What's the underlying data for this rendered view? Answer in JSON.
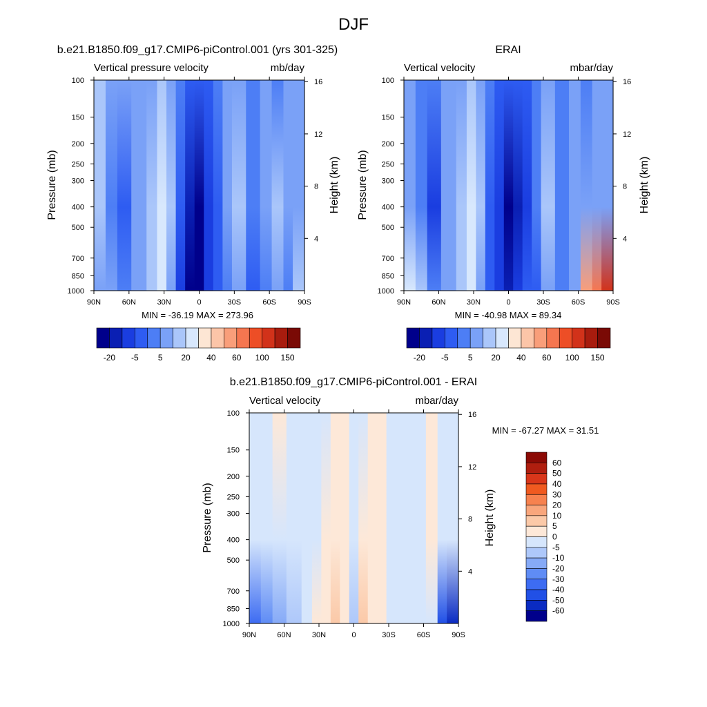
{
  "figure": {
    "title": "DJF",
    "background": "#ffffff"
  },
  "colormaps": {
    "diverging_top": [
      "#00008b",
      "#0a1fb3",
      "#1a3de0",
      "#2e5cf2",
      "#4d7ef5",
      "#7aa1f7",
      "#aac6fa",
      "#d8e8fd",
      "#fde6d4",
      "#fcc5a8",
      "#f99e7a",
      "#f57650",
      "#ed4e26",
      "#d2321a",
      "#a81c0e",
      "#7a0a05"
    ],
    "diff": [
      "#00008b",
      "#0a2bc2",
      "#2150e6",
      "#3d6cf2",
      "#5f8cf5",
      "#86aaf7",
      "#aec8fa",
      "#d6e6fc",
      "#fde8d8",
      "#fbc9a8",
      "#f9a67c",
      "#f7824f",
      "#f05a20",
      "#d9361a",
      "#b01e0f",
      "#8b0a05"
    ]
  },
  "chart_data": [
    {
      "type": "heatmap",
      "panel_id": "model",
      "title": "b.e21.B1850.f09_g17.CMIP6-piControl.001 (yrs 301-325)",
      "left_label": "Vertical pressure velocity",
      "right_label": "mb/day",
      "xlabel": "",
      "ylabel": "Pressure (mb)",
      "y2label": "Height (km)",
      "xticks": [
        "90N",
        "60N",
        "30N",
        "0",
        "30S",
        "60S",
        "90S"
      ],
      "xrange": [
        90,
        -90
      ],
      "yticks": [
        100,
        150,
        200,
        250,
        300,
        400,
        500,
        700,
        850,
        1000
      ],
      "ylim": [
        100,
        1000
      ],
      "y2ticks": [
        4,
        8,
        12,
        16
      ],
      "min": -36.19,
      "max": 273.96,
      "stats_text": "MIN = -36.19  MAX = 273.96",
      "colorbar_labels": [
        "-20",
        "-5",
        "5",
        "20",
        "40",
        "60",
        "100",
        "150"
      ],
      "columns": [
        {
          "lat_from": 90,
          "lat_to": 80,
          "top": 6,
          "mid": 6,
          "bottom": 5
        },
        {
          "lat_from": 80,
          "lat_to": 70,
          "top": 5,
          "mid": 4,
          "bottom": 5
        },
        {
          "lat_from": 70,
          "lat_to": 58,
          "top": 5,
          "mid": 3,
          "bottom": 4
        },
        {
          "lat_from": 58,
          "lat_to": 45,
          "top": 5,
          "mid": 5,
          "bottom": 5
        },
        {
          "lat_from": 45,
          "lat_to": 36,
          "top": 5,
          "mid": 6,
          "bottom": 6
        },
        {
          "lat_from": 36,
          "lat_to": 28,
          "top": 6,
          "mid": 7,
          "bottom": 7
        },
        {
          "lat_from": 28,
          "lat_to": 20,
          "top": 5,
          "mid": 6,
          "bottom": 5
        },
        {
          "lat_from": 20,
          "lat_to": 12,
          "top": 4,
          "mid": 3,
          "bottom": 2
        },
        {
          "lat_from": 12,
          "lat_to": 4,
          "top": 3,
          "mid": 1,
          "bottom": 0
        },
        {
          "lat_from": 4,
          "lat_to": -4,
          "top": 3,
          "mid": 0,
          "bottom": 0
        },
        {
          "lat_from": -4,
          "lat_to": -12,
          "top": 3,
          "mid": 2,
          "bottom": 2
        },
        {
          "lat_from": -12,
          "lat_to": -20,
          "top": 4,
          "mid": 3,
          "bottom": 3
        },
        {
          "lat_from": -20,
          "lat_to": -28,
          "top": 5,
          "mid": 5,
          "bottom": 4
        },
        {
          "lat_from": -28,
          "lat_to": -40,
          "top": 5,
          "mid": 6,
          "bottom": 5
        },
        {
          "lat_from": -40,
          "lat_to": -52,
          "top": 4,
          "mid": 4,
          "bottom": 3
        },
        {
          "lat_from": -52,
          "lat_to": -62,
          "top": 5,
          "mid": 5,
          "bottom": 4
        },
        {
          "lat_from": -62,
          "lat_to": -72,
          "top": 4,
          "mid": 6,
          "bottom": 5
        },
        {
          "lat_from": -72,
          "lat_to": -80,
          "top": 5,
          "mid": 5,
          "bottom": 4
        },
        {
          "lat_from": -80,
          "lat_to": -90,
          "top": 5,
          "mid": 5,
          "bottom": 6
        }
      ]
    },
    {
      "type": "heatmap",
      "panel_id": "obs",
      "title": "ERAI",
      "left_label": "Vertical velocity",
      "right_label": "mbar/day",
      "xlabel": "",
      "ylabel": "Pressure (mb)",
      "y2label": "Height (km)",
      "xticks": [
        "90N",
        "60N",
        "30N",
        "0",
        "30S",
        "60S",
        "90S"
      ],
      "xrange": [
        90,
        -90
      ],
      "yticks": [
        100,
        150,
        200,
        250,
        300,
        400,
        500,
        700,
        850,
        1000
      ],
      "ylim": [
        100,
        1000
      ],
      "y2ticks": [
        4,
        8,
        12,
        16
      ],
      "min": -40.98,
      "max": 89.34,
      "stats_text": "MIN = -40.98  MAX =  89.34",
      "colorbar_labels": [
        "-20",
        "-5",
        "5",
        "20",
        "40",
        "60",
        "100",
        "150"
      ],
      "columns": [
        {
          "lat_from": 90,
          "lat_to": 80,
          "top": 5,
          "mid": 5,
          "bottom": 7
        },
        {
          "lat_from": 80,
          "lat_to": 70,
          "top": 4,
          "mid": 4,
          "bottom": 6
        },
        {
          "lat_from": 70,
          "lat_to": 58,
          "top": 4,
          "mid": 2,
          "bottom": 4
        },
        {
          "lat_from": 58,
          "lat_to": 45,
          "top": 5,
          "mid": 5,
          "bottom": 5
        },
        {
          "lat_from": 45,
          "lat_to": 36,
          "top": 5,
          "mid": 6,
          "bottom": 6
        },
        {
          "lat_from": 36,
          "lat_to": 28,
          "top": 6,
          "mid": 7,
          "bottom": 7
        },
        {
          "lat_from": 28,
          "lat_to": 20,
          "top": 5,
          "mid": 6,
          "bottom": 5
        },
        {
          "lat_from": 20,
          "lat_to": 12,
          "top": 4,
          "mid": 3,
          "bottom": 3
        },
        {
          "lat_from": 12,
          "lat_to": 4,
          "top": 3,
          "mid": 2,
          "bottom": 2
        },
        {
          "lat_from": 4,
          "lat_to": -4,
          "top": 3,
          "mid": 0,
          "bottom": 1
        },
        {
          "lat_from": -4,
          "lat_to": -12,
          "top": 3,
          "mid": 1,
          "bottom": 2
        },
        {
          "lat_from": -12,
          "lat_to": -20,
          "top": 3,
          "mid": 2,
          "bottom": 3
        },
        {
          "lat_from": -20,
          "lat_to": -28,
          "top": 4,
          "mid": 4,
          "bottom": 3
        },
        {
          "lat_from": -28,
          "lat_to": -40,
          "top": 5,
          "mid": 6,
          "bottom": 5
        },
        {
          "lat_from": -40,
          "lat_to": -52,
          "top": 4,
          "mid": 4,
          "bottom": 4
        },
        {
          "lat_from": -52,
          "lat_to": -62,
          "top": 5,
          "mid": 5,
          "bottom": 5
        },
        {
          "lat_from": -62,
          "lat_to": -72,
          "top": 4,
          "mid": 5,
          "bottom": 10
        },
        {
          "lat_from": -72,
          "lat_to": -80,
          "top": 5,
          "mid": 5,
          "bottom": 11
        },
        {
          "lat_from": -80,
          "lat_to": -90,
          "top": 5,
          "mid": 5,
          "bottom": 13
        }
      ]
    },
    {
      "type": "heatmap",
      "panel_id": "diff",
      "title": "b.e21.B1850.f09_g17.CMIP6-piControl.001 - ERAI",
      "left_label": "Vertical velocity",
      "right_label": "mbar/day",
      "xlabel": "",
      "ylabel": "Pressure (mb)",
      "y2label": "Height (km)",
      "xticks": [
        "90N",
        "60N",
        "30N",
        "0",
        "30S",
        "60S",
        "90S"
      ],
      "xrange": [
        90,
        -90
      ],
      "yticks": [
        100,
        150,
        200,
        250,
        300,
        400,
        500,
        700,
        850,
        1000
      ],
      "ylim": [
        100,
        1000
      ],
      "y2ticks": [
        4,
        8,
        12,
        16
      ],
      "min": -67.27,
      "max": 31.51,
      "stats_text": "MIN = -67.27  MAX =  31.51",
      "colorbar_labels": [
        "60",
        "50",
        "40",
        "30",
        "20",
        "10",
        "5",
        "0",
        "-5",
        "-10",
        "-20",
        "-30",
        "-40",
        "-50",
        "-60"
      ],
      "columns": [
        {
          "lat_from": 90,
          "lat_to": 80,
          "top": 7,
          "mid": 7,
          "bottom": 3
        },
        {
          "lat_from": 80,
          "lat_to": 70,
          "top": 7,
          "mid": 7,
          "bottom": 4
        },
        {
          "lat_from": 70,
          "lat_to": 58,
          "top": 8,
          "mid": 7,
          "bottom": 5
        },
        {
          "lat_from": 58,
          "lat_to": 45,
          "top": 7,
          "mid": 7,
          "bottom": 6
        },
        {
          "lat_from": 45,
          "lat_to": 36,
          "top": 7,
          "mid": 7,
          "bottom": 7
        },
        {
          "lat_from": 36,
          "lat_to": 28,
          "top": 7,
          "mid": 7,
          "bottom": 8
        },
        {
          "lat_from": 28,
          "lat_to": 20,
          "top": 7,
          "mid": 8,
          "bottom": 8
        },
        {
          "lat_from": 20,
          "lat_to": 12,
          "top": 8,
          "mid": 8,
          "bottom": 9
        },
        {
          "lat_from": 12,
          "lat_to": 4,
          "top": 8,
          "mid": 8,
          "bottom": 8
        },
        {
          "lat_from": 4,
          "lat_to": -4,
          "top": 7,
          "mid": 7,
          "bottom": 6
        },
        {
          "lat_from": -4,
          "lat_to": -12,
          "top": 7,
          "mid": 8,
          "bottom": 9
        },
        {
          "lat_from": -12,
          "lat_to": -20,
          "top": 8,
          "mid": 8,
          "bottom": 8
        },
        {
          "lat_from": -20,
          "lat_to": -28,
          "top": 8,
          "mid": 8,
          "bottom": 8
        },
        {
          "lat_from": -28,
          "lat_to": -40,
          "top": 7,
          "mid": 7,
          "bottom": 7
        },
        {
          "lat_from": -40,
          "lat_to": -52,
          "top": 7,
          "mid": 7,
          "bottom": 7
        },
        {
          "lat_from": -52,
          "lat_to": -62,
          "top": 7,
          "mid": 7,
          "bottom": 7
        },
        {
          "lat_from": -62,
          "lat_to": -72,
          "top": 8,
          "mid": 8,
          "bottom": 7
        },
        {
          "lat_from": -72,
          "lat_to": -80,
          "top": 7,
          "mid": 7,
          "bottom": 2
        },
        {
          "lat_from": -80,
          "lat_to": -90,
          "top": 7,
          "mid": 7,
          "bottom": 1
        }
      ]
    }
  ]
}
